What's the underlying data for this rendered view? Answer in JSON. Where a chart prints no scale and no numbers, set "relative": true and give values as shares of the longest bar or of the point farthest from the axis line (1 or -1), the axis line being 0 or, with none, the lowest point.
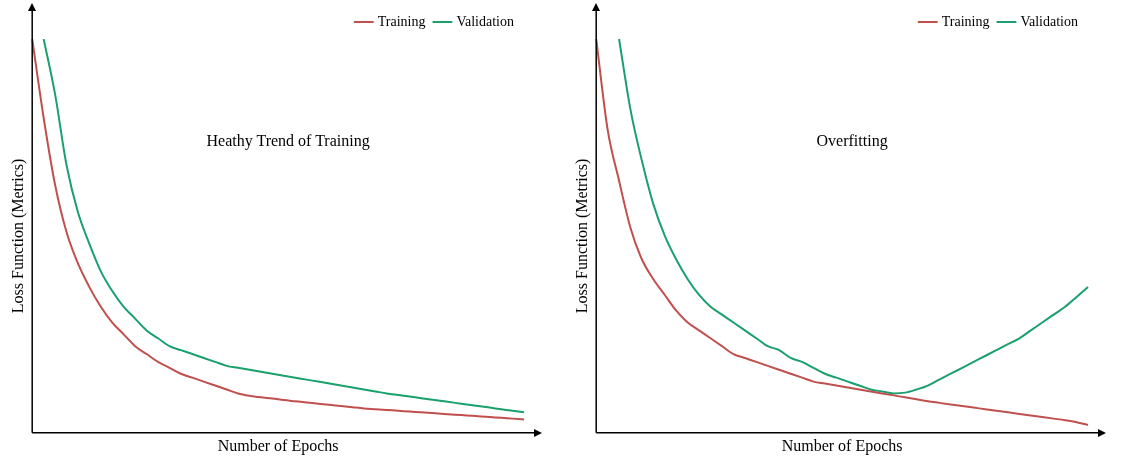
{
  "chart_data": [
    {
      "type": "line",
      "relative": true,
      "xlabel": "Number of Epochs",
      "ylabel": "Loss Function (Metrics)",
      "annotations": [
        "Heathy Trend of Training"
      ],
      "legend": "top right",
      "grid": false,
      "tick_labels": false,
      "marker": "none",
      "line_style": "solid",
      "categories": [
        null,
        null,
        null,
        null,
        null,
        null,
        null,
        null,
        null,
        null,
        null,
        null,
        null,
        null,
        null,
        null,
        null,
        null,
        null,
        null,
        null,
        null,
        null,
        null,
        null,
        null,
        null,
        null,
        null,
        null,
        null,
        null,
        null,
        null,
        null,
        null,
        null,
        null,
        null,
        null,
        null,
        null,
        null,
        null
      ],
      "series": [
        {
          "name": "Training",
          "color": "#c0504d",
          "values": [
            1.0,
            0.8,
            0.63,
            0.51,
            0.43,
            0.37,
            0.32,
            0.28,
            0.25,
            0.22,
            0.2,
            0.18,
            0.165,
            0.15,
            0.14,
            0.13,
            0.12,
            0.11,
            0.1,
            0.094,
            0.09,
            0.087,
            0.083,
            0.08,
            0.077,
            0.074,
            0.071,
            0.068,
            0.065,
            0.062,
            0.06,
            0.058,
            0.056,
            0.054,
            0.052,
            0.05,
            0.048,
            0.046,
            0.044,
            0.042,
            0.04,
            0.038,
            0.036,
            0.034
          ]
        },
        {
          "name": "Validation",
          "color": "#1aa06d",
          "values": [
            null,
            1.0,
            0.86,
            0.68,
            0.56,
            0.48,
            0.41,
            0.36,
            0.32,
            0.29,
            0.26,
            0.24,
            0.22,
            0.21,
            0.2,
            0.19,
            0.18,
            0.17,
            0.165,
            0.16,
            0.155,
            0.15,
            0.145,
            0.14,
            0.135,
            0.13,
            0.125,
            0.12,
            0.115,
            0.11,
            0.105,
            0.1,
            0.096,
            0.092,
            0.088,
            0.084,
            0.08,
            0.076,
            0.072,
            0.068,
            0.064,
            0.06,
            0.056,
            0.052
          ]
        }
      ]
    },
    {
      "type": "line",
      "relative": true,
      "xlabel": "Number of Epochs",
      "ylabel": "Loss Function (Metrics)",
      "annotations": [
        "Overfitting"
      ],
      "legend": "top right",
      "grid": false,
      "tick_labels": false,
      "marker": "none",
      "line_style": "solid",
      "categories": [
        null,
        null,
        null,
        null,
        null,
        null,
        null,
        null,
        null,
        null,
        null,
        null,
        null,
        null,
        null,
        null,
        null,
        null,
        null,
        null,
        null,
        null,
        null,
        null,
        null,
        null,
        null,
        null,
        null,
        null,
        null,
        null,
        null,
        null,
        null,
        null,
        null,
        null,
        null,
        null,
        null,
        null,
        null,
        null
      ],
      "series": [
        {
          "name": "Training",
          "color": "#c0504d",
          "values": [
            1.0,
            0.77,
            0.64,
            0.52,
            0.44,
            0.39,
            0.35,
            0.31,
            0.28,
            0.26,
            0.24,
            0.22,
            0.2,
            0.19,
            0.18,
            0.17,
            0.16,
            0.15,
            0.14,
            0.13,
            0.125,
            0.12,
            0.115,
            0.11,
            0.105,
            0.1,
            0.095,
            0.09,
            0.085,
            0.08,
            0.076,
            0.072,
            0.068,
            0.064,
            0.06,
            0.056,
            0.052,
            0.048,
            0.044,
            0.04,
            0.036,
            0.032,
            0.027,
            0.02
          ]
        },
        {
          "name": "Validation",
          "color": "#1aa06d",
          "values": [
            null,
            null,
            1.0,
            0.82,
            0.69,
            0.58,
            0.5,
            0.44,
            0.39,
            0.35,
            0.32,
            0.3,
            0.28,
            0.26,
            0.24,
            0.22,
            0.21,
            0.19,
            0.18,
            0.165,
            0.15,
            0.14,
            0.13,
            0.12,
            0.11,
            0.105,
            0.1,
            0.102,
            0.11,
            0.12,
            0.135,
            0.15,
            0.165,
            0.18,
            0.195,
            0.21,
            0.225,
            0.24,
            0.26,
            0.28,
            0.3,
            0.32,
            0.345,
            0.37
          ]
        }
      ]
    }
  ]
}
